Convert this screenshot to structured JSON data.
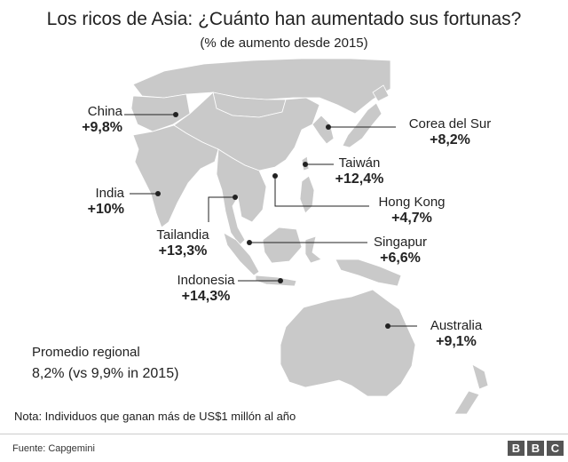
{
  "title": "Los ricos de Asia: ¿Cuánto han aumentado sus fortunas?",
  "subtitle": "(% de aumento desde 2015)",
  "countries": [
    {
      "name": "China",
      "value": "+9,8%"
    },
    {
      "name": "India",
      "value": "+10%"
    },
    {
      "name": "Tailandia",
      "value": "+13,3%"
    },
    {
      "name": "Indonesia",
      "value": "+14,3%"
    },
    {
      "name": "Corea del Sur",
      "value": "+8,2%"
    },
    {
      "name": "Taiwán",
      "value": "+12,4%"
    },
    {
      "name": "Hong Kong",
      "value": "+4,7%"
    },
    {
      "name": "Singapur",
      "value": "+6,6%"
    },
    {
      "name": "Australia",
      "value": "+9,1%"
    }
  ],
  "regional": {
    "label": "Promedio regional",
    "value": "8,2% (vs 9,9% in 2015)"
  },
  "note": "Nota: Individuos que ganan más de US$1 millón al año",
  "source": "Fuente: Capgemini",
  "logo": [
    "B",
    "B",
    "C"
  ],
  "colors": {
    "land": "#c9c9c9",
    "border": "#ffffff",
    "marker": "#222222"
  }
}
